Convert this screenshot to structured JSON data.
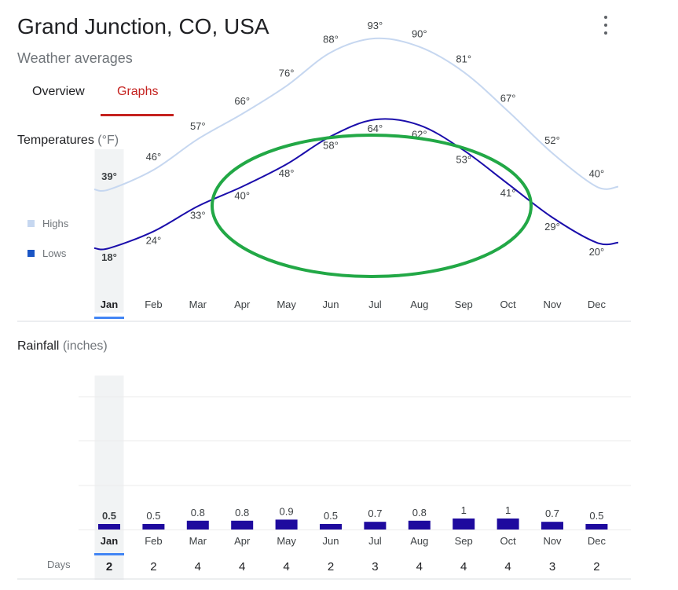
{
  "header": {
    "title": "Grand Junction, CO, USA",
    "subtitle": "Weather averages",
    "menu_icon": "more-vert-icon"
  },
  "tabs": [
    {
      "label": "Overview",
      "active": false
    },
    {
      "label": "Graphs",
      "active": true
    }
  ],
  "colors": {
    "accent": "#c5221f",
    "highs_line": "#c6d7f0",
    "lows_line": "#1a0dab",
    "rain_bar": "#1e0a9e",
    "selected_column": "#f1f3f4",
    "selected_marker": "#4285f4",
    "highlight_ellipse": "#22a846"
  },
  "temperature": {
    "title": "Temperatures",
    "unit": "(°F)",
    "legend": [
      {
        "label": "Highs",
        "color": "#c6d7f0"
      },
      {
        "label": "Lows",
        "color": "#1a55c5"
      }
    ]
  },
  "rainfall": {
    "title": "Rainfall",
    "unit": "(inches)",
    "days_label": "Days"
  },
  "selected_month": "Jan",
  "chart_data": [
    {
      "type": "line",
      "x": [
        "Jan",
        "Feb",
        "Mar",
        "Apr",
        "May",
        "Jun",
        "Jul",
        "Aug",
        "Sep",
        "Oct",
        "Nov",
        "Dec"
      ],
      "series": [
        {
          "name": "Highs",
          "values": [
            39,
            46,
            57,
            66,
            76,
            88,
            93,
            90,
            81,
            67,
            52,
            40
          ],
          "labels": [
            "39°",
            "46°",
            "57°",
            "66°",
            "76°",
            "88°",
            "93°",
            "90°",
            "81°",
            "67°",
            "52°",
            "40°"
          ]
        },
        {
          "name": "Lows",
          "values": [
            18,
            24,
            33,
            40,
            48,
            58,
            64,
            62,
            53,
            41,
            29,
            20
          ],
          "labels": [
            "18°",
            "24°",
            "33°",
            "40°",
            "48°",
            "58°",
            "64°",
            "62°",
            "53°",
            "41°",
            "29°",
            "20°"
          ]
        }
      ],
      "title": "Temperatures",
      "ylabel": "(°F)"
    },
    {
      "type": "bar",
      "categories": [
        "Jan",
        "Feb",
        "Mar",
        "Apr",
        "May",
        "Jun",
        "Jul",
        "Aug",
        "Sep",
        "Oct",
        "Nov",
        "Dec"
      ],
      "values": [
        0.5,
        0.5,
        0.8,
        0.8,
        0.9,
        0.5,
        0.7,
        0.8,
        1,
        1,
        0.7,
        0.5
      ],
      "value_labels": [
        "0.5",
        "0.5",
        "0.8",
        "0.8",
        "0.9",
        "0.5",
        "0.7",
        "0.8",
        "1",
        "1",
        "0.7",
        "0.5"
      ],
      "days": [
        "2",
        "2",
        "4",
        "4",
        "4",
        "2",
        "3",
        "4",
        "4",
        "4",
        "3",
        "2"
      ],
      "title": "Rainfall",
      "ylabel": "(inches)",
      "ylim": [
        0,
        10
      ]
    }
  ]
}
